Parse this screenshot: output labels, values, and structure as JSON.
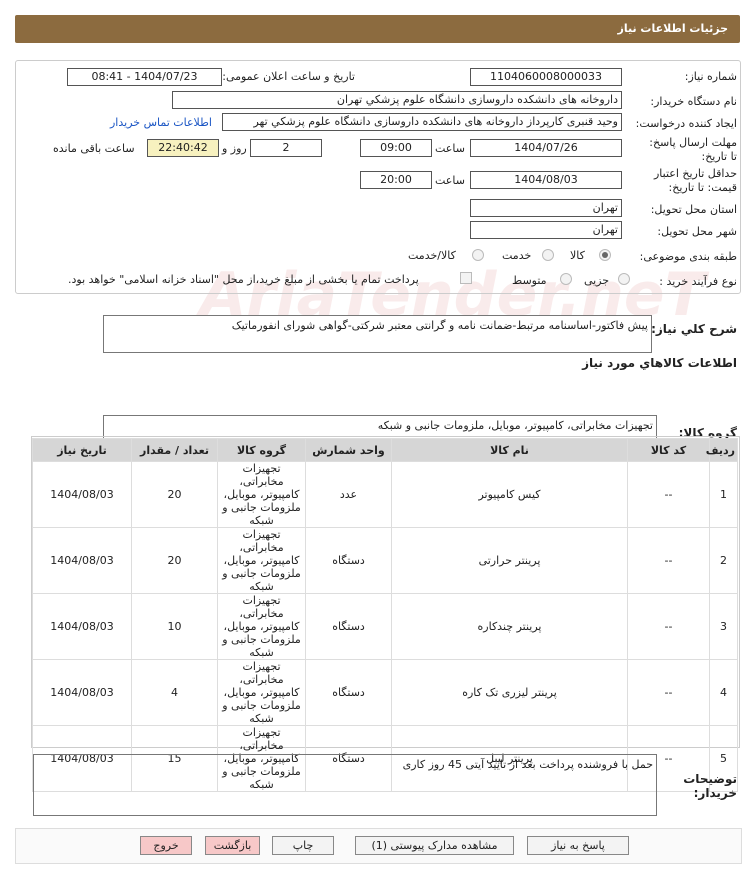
{
  "header": {
    "title": "جزئیات اطلاعات نیاز"
  },
  "watermark": "AriaTender.neT",
  "form": {
    "need_number": {
      "label": "شماره نیاز:",
      "value": "1104060008000033"
    },
    "announce": {
      "label": "تاریخ و ساعت اعلان عمومی:",
      "value": "1404/07/23 - 08:41"
    },
    "buyer_org": {
      "label": "نام دستگاه خریدار:",
      "value": "داروخانه های دانشکده داروسازی دانشگاه علوم پزشکي تهران"
    },
    "creator": {
      "label": "ایجاد کننده درخواست:",
      "value": "وحید قنبری کارپرداز داروخانه های دانشکده داروسازی دانشگاه علوم پزشکي تهر",
      "link": "اطلاعات تماس خریدار"
    },
    "deadline": {
      "label": "مهلت ارسال پاسخ: تا تاریخ:",
      "date": "1404/07/26",
      "time_label": "ساعت",
      "time": "09:00",
      "days": 2,
      "days_label": "روز و",
      "remaining": "22:40:42",
      "remaining_label": "ساعت باقی مانده"
    },
    "validity": {
      "label": "حداقل تاریخ اعتبار قیمت: تا تاریخ:",
      "date": "1404/08/03",
      "time_label": "ساعت",
      "time": "20:00"
    },
    "province": {
      "label": "استان محل تحویل:",
      "value": "تهران"
    },
    "city": {
      "label": "شهر محل تحویل:",
      "value": "تهران"
    },
    "category": {
      "label": "طبقه بندی موضوعی:",
      "options": [
        "کالا",
        "خدمت",
        "کالا/خدمت"
      ],
      "selected": 0
    },
    "process": {
      "label": "نوع فرآیند خرید :",
      "options": [
        "جزیی",
        "متوسط"
      ],
      "note": "پرداخت تمام یا بخشی از مبلغ خرید،از محل \"اسناد خزانه اسلامی\" خواهد بود."
    }
  },
  "description": {
    "label": "شرح کلي نیاز:",
    "value": "پیش فاکتور-اساسنامه مرتبط-ضمانت نامه و گرانتی معتبر شرکتی-گواهی شورای انفورماتیک"
  },
  "goods_title": "اطلاعات کالاهاي مورد نیاز",
  "goods_group": {
    "label": "گروه کالا:",
    "value": "تجهیزات مخابراتی، کامپیوتر، موبایل، ملزومات جانبی و شبکه"
  },
  "table": {
    "headers": [
      "ردیف",
      "کد کالا",
      "نام کالا",
      "واحد شمارش",
      "گروه کالا",
      "تعداد / مقدار",
      "تاریخ نیاز"
    ],
    "rows": [
      [
        1,
        "--",
        "کیس کامپیوتر",
        "عدد",
        "تجهیزات مخابراتی، کامپیوتر، موبایل، ملزومات جانبی و شبکه",
        20,
        "1404/08/03"
      ],
      [
        2,
        "--",
        "پرینتر حرارتی",
        "دستگاه",
        "تجهیزات مخابراتی، کامپیوتر، موبایل، ملزومات جانبی و شبکه",
        20,
        "1404/08/03"
      ],
      [
        3,
        "--",
        "پرینتر چندکاره",
        "دستگاه",
        "تجهیزات مخابراتی، کامپیوتر، موبایل، ملزومات جانبی و شبکه",
        10,
        "1404/08/03"
      ],
      [
        4,
        "--",
        "پرینتر لیزری تک کاره",
        "دستگاه",
        "تجهیزات مخابراتی، کامپیوتر، موبایل، ملزومات جانبی و شبکه",
        4,
        "1404/08/03"
      ],
      [
        5,
        "--",
        "پرینتر لیبل",
        "دستگاه",
        "تجهیزات مخابراتی، کامپیوتر، موبایل، ملزومات جانبی و شبکه",
        15,
        "1404/08/03"
      ]
    ]
  },
  "buyer_notes": {
    "label": "توضیحات خریدار:",
    "value": "حمل با فروشنده پرداخت بعد از تایید آیتی 45 روز کاری"
  },
  "buttons": [
    "پاسخ به نیاز",
    "مشاهده مدارک پیوستی (1)",
    "چاپ",
    "بازگشت",
    "خروج"
  ]
}
